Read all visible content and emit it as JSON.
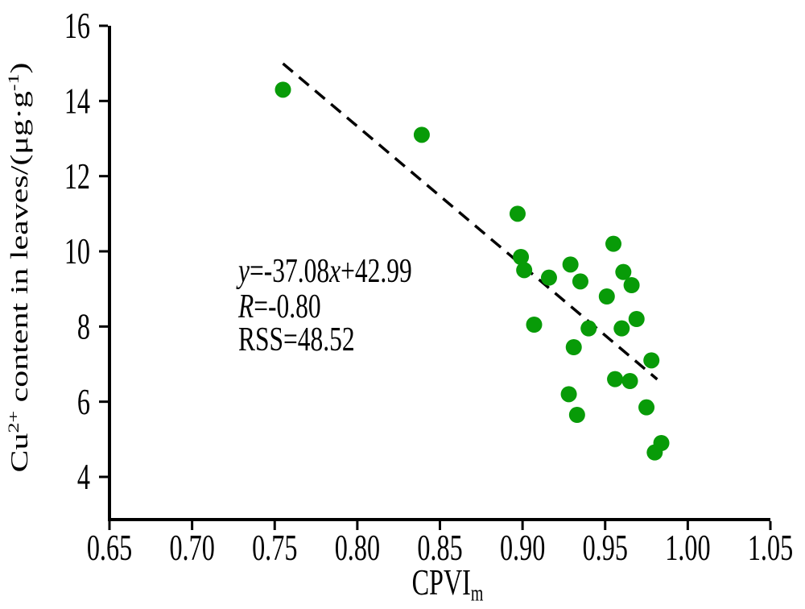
{
  "figure": {
    "background_color": "#ffffff",
    "axis_color": "#000000",
    "text_color": "#000000"
  },
  "chart_data": {
    "type": "scatter",
    "title": "",
    "xlabel": "CPVI_m",
    "ylabel": "Cu2+ content in leaves/(ug*g-1)",
    "xlabel_parts": [
      {
        "t": "CPVI"
      },
      {
        "t": "m",
        "sub": true
      }
    ],
    "ylabel_parts": [
      {
        "t": "Cu"
      },
      {
        "t": "2+",
        "sup": true
      },
      {
        "t": " content in leaves/(μg·g"
      },
      {
        "t": "-1",
        "sup": true
      },
      {
        "t": ")"
      }
    ],
    "x_range": [
      0.65,
      1.05
    ],
    "y_tick_range": [
      4,
      16
    ],
    "x_ticks": [
      "0.65",
      "0.70",
      "0.75",
      "0.80",
      "0.85",
      "0.90",
      "0.95",
      "1.00",
      "1.05"
    ],
    "x_tick_values": [
      0.65,
      0.7,
      0.75,
      0.8,
      0.85,
      0.9,
      0.95,
      1.0,
      1.05
    ],
    "y_ticks": [
      "4",
      "6",
      "8",
      "10",
      "12",
      "14",
      "16"
    ],
    "y_tick_values": [
      4,
      6,
      8,
      10,
      12,
      14,
      16
    ],
    "grid": false,
    "legend": "none",
    "point_color": "#089b08",
    "line_color": "#000000",
    "points": [
      [
        0.755,
        14.3
      ],
      [
        0.839,
        13.1
      ],
      [
        0.897,
        11.0
      ],
      [
        0.955,
        10.2
      ],
      [
        0.899,
        9.85
      ],
      [
        0.901,
        9.5
      ],
      [
        0.929,
        9.65
      ],
      [
        0.916,
        9.3
      ],
      [
        0.935,
        9.2
      ],
      [
        0.961,
        9.45
      ],
      [
        0.966,
        9.1
      ],
      [
        0.951,
        8.8
      ],
      [
        0.907,
        8.05
      ],
      [
        0.969,
        8.2
      ],
      [
        0.94,
        7.95
      ],
      [
        0.96,
        7.95
      ],
      [
        0.931,
        7.45
      ],
      [
        0.978,
        7.1
      ],
      [
        0.956,
        6.6
      ],
      [
        0.965,
        6.55
      ],
      [
        0.928,
        6.2
      ],
      [
        0.933,
        5.65
      ],
      [
        0.975,
        5.85
      ],
      [
        0.984,
        4.9
      ],
      [
        0.98,
        4.65
      ]
    ],
    "trend_line": {
      "style": "dashed",
      "slope": -37.08,
      "intercept": 42.99,
      "x_start": 0.755,
      "x_end": 0.9815
    },
    "annotation": {
      "lines": [
        {
          "text": "y=-37.08x+42.99",
          "parts": [
            {
              "t": "y",
              "i": true
            },
            {
              "t": "=-37.08"
            },
            {
              "t": "x",
              "i": true
            },
            {
              "t": "+42.99"
            }
          ]
        },
        {
          "text": "R=-0.80",
          "parts": [
            {
              "t": "R",
              "i": true
            },
            {
              "t": "=-0.80"
            }
          ]
        },
        {
          "text": "RSS=48.52",
          "parts": [
            {
              "t": "RSS=48.52"
            }
          ]
        }
      ]
    }
  }
}
